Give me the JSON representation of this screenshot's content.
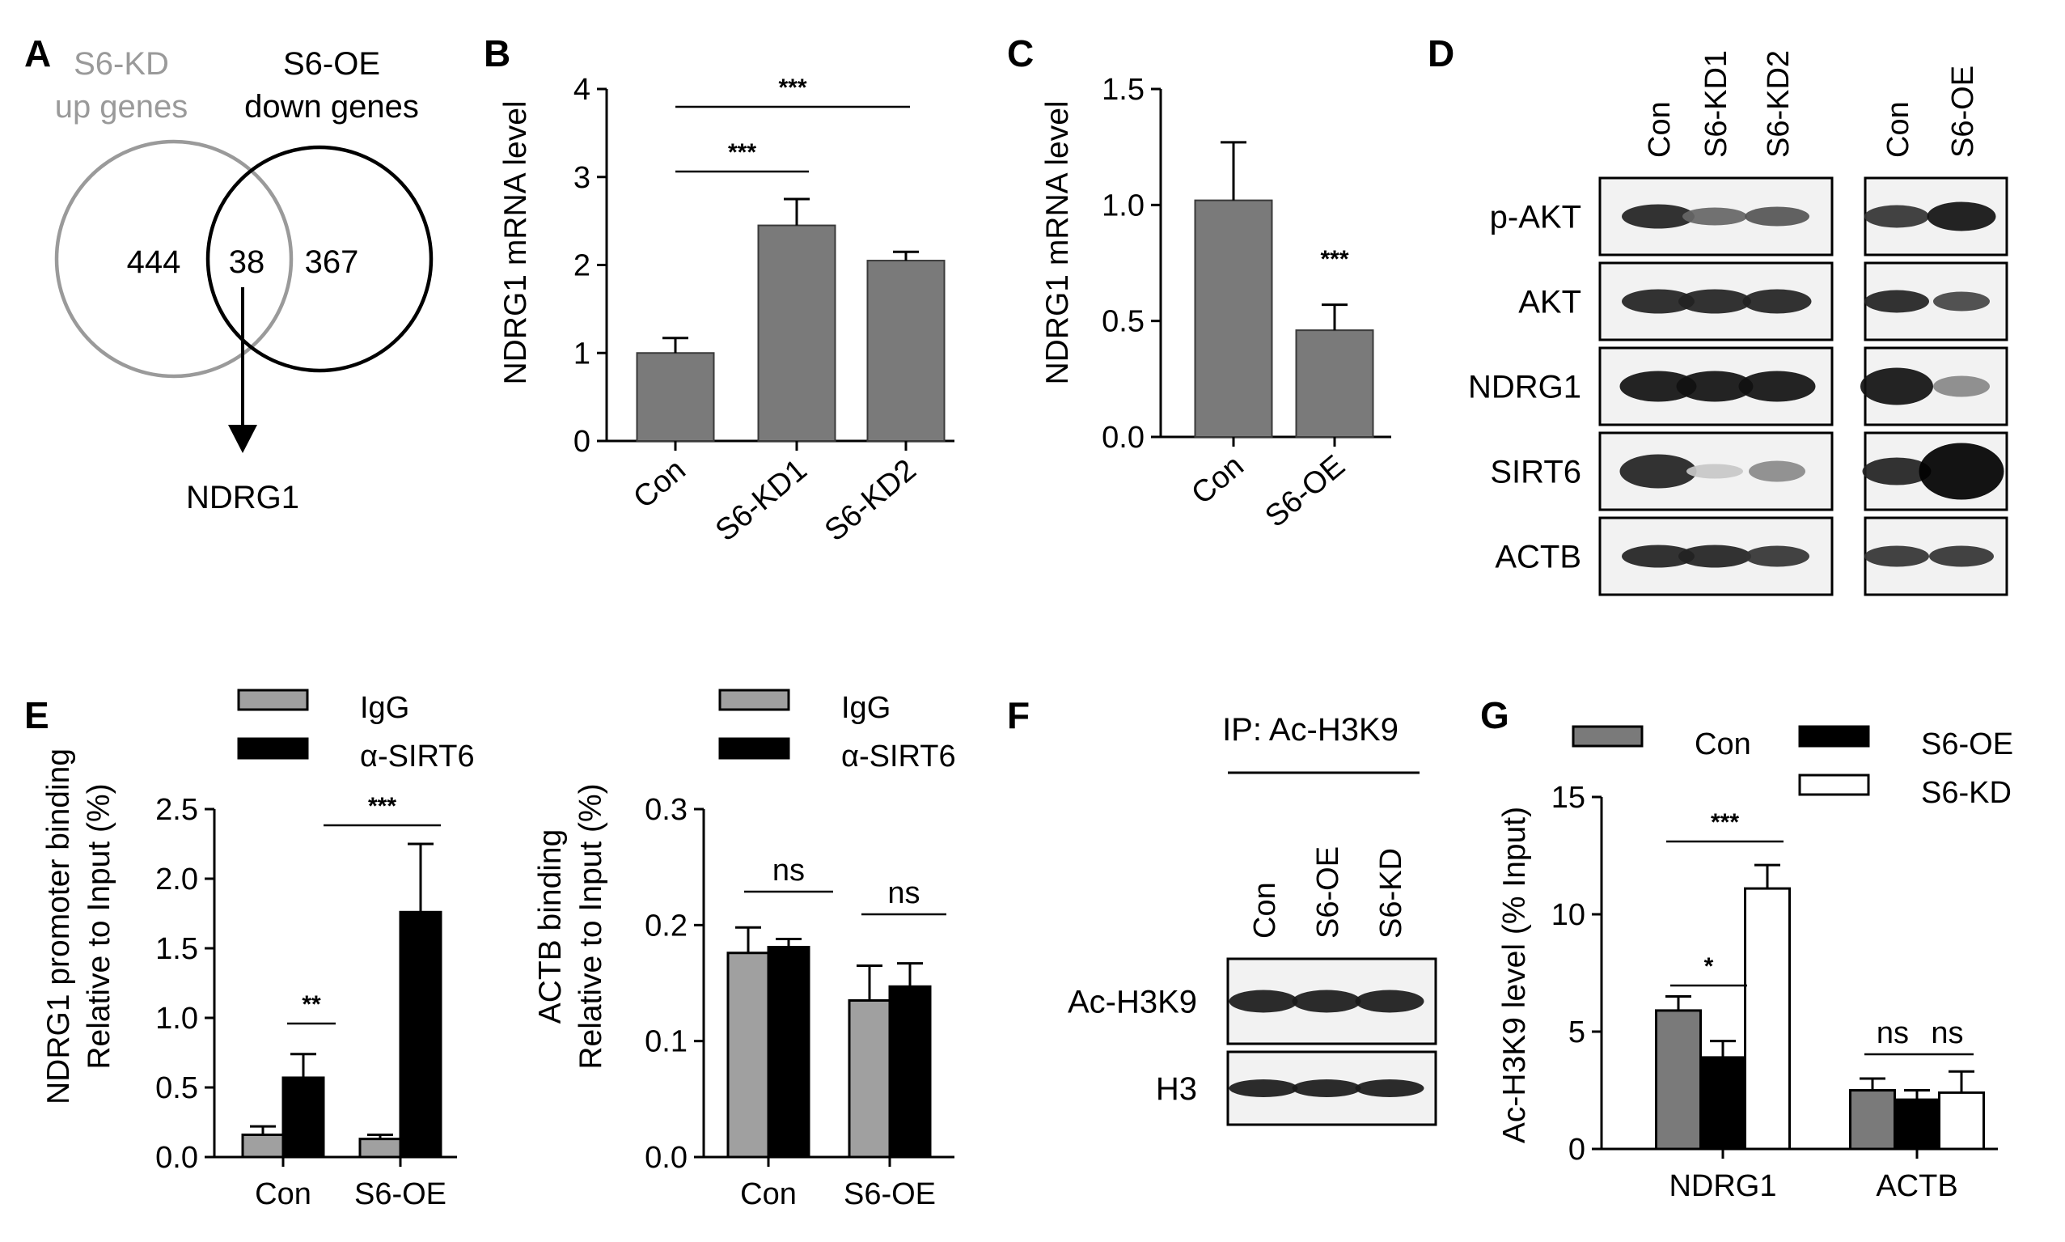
{
  "panels": {
    "A": {
      "label": "A",
      "left_title_lines": [
        "S6-KD",
        "up genes"
      ],
      "right_title_lines": [
        "S6-OE",
        "down genes"
      ],
      "left_count": "444",
      "overlap_count": "38",
      "right_count": "367",
      "result_gene": "NDRG1",
      "colors": {
        "left_circle": "#9a9a9a",
        "right_circle": "#000000",
        "left_title": "#9a9a9a"
      }
    },
    "D": {
      "label": "D",
      "lanes_left": [
        "Con",
        "S6-KD1",
        "S6-KD2"
      ],
      "lanes_right": [
        "Con",
        "S6-OE"
      ],
      "rows": [
        "p-AKT",
        "AKT",
        "NDRG1",
        "SIRT6",
        "ACTB"
      ]
    },
    "F": {
      "label": "F",
      "ip_label": "IP: Ac-H3K9",
      "lanes": [
        "Con",
        "S6-OE",
        "S6-KD"
      ],
      "rows": [
        "Ac-H3K9",
        "H3"
      ]
    }
  },
  "chart_data": [
    {
      "id": "B",
      "label": "B",
      "type": "bar",
      "categories": [
        "Con",
        "S6-KD1",
        "S6-KD2"
      ],
      "values": [
        1.0,
        2.45,
        2.05
      ],
      "errors": [
        0.17,
        0.3,
        0.1
      ],
      "ylabel": "NDRG1 mRNA level",
      "ylim": [
        0,
        4
      ],
      "yticks": [
        "0",
        "1",
        "2",
        "3",
        "4"
      ],
      "significance": [
        {
          "from": "Con",
          "to": "S6-KD1",
          "text": "***"
        },
        {
          "from": "Con",
          "to": "S6-KD2",
          "text": "***"
        }
      ],
      "color": "#7a7a7a"
    },
    {
      "id": "C",
      "label": "C",
      "type": "bar",
      "categories": [
        "Con",
        "S6-OE"
      ],
      "values": [
        1.02,
        0.46
      ],
      "errors": [
        0.25,
        0.11
      ],
      "ylabel": "NDRG1 mRNA level",
      "ylim": [
        0,
        1.5
      ],
      "yticks": [
        "0.0",
        "0.5",
        "1.0",
        "1.5"
      ],
      "significance": [
        {
          "over": "S6-OE",
          "text": "***"
        }
      ],
      "color": "#7a7a7a"
    },
    {
      "id": "E1",
      "label": "E",
      "type": "bar",
      "categories": [
        "Con",
        "S6-OE"
      ],
      "series": [
        {
          "name": "IgG",
          "values": [
            0.16,
            0.13
          ],
          "errors": [
            0.06,
            0.03
          ],
          "color": "#a0a0a0"
        },
        {
          "name": "α-SIRT6",
          "values": [
            0.57,
            1.76
          ],
          "errors": [
            0.17,
            0.49
          ],
          "color": "#000000"
        }
      ],
      "ylabel_lines": [
        "NDRG1 promoter binding",
        "Relative to Input (%)"
      ],
      "ylim": [
        0,
        2.5
      ],
      "yticks": [
        "0.0",
        "0.5",
        "1.0",
        "1.5",
        "2.0",
        "2.5"
      ],
      "significance": [
        {
          "text": "**",
          "group": "Con"
        },
        {
          "text": "***",
          "between": "Con α-SIRT6 - S6-OE α-SIRT6"
        }
      ]
    },
    {
      "id": "E2",
      "type": "bar",
      "categories": [
        "Con",
        "S6-OE"
      ],
      "series": [
        {
          "name": "IgG",
          "values": [
            0.176,
            0.135
          ],
          "errors": [
            0.022,
            0.03
          ],
          "color": "#a0a0a0"
        },
        {
          "name": "α-SIRT6",
          "values": [
            0.181,
            0.147
          ],
          "errors": [
            0.007,
            0.02
          ],
          "color": "#000000"
        }
      ],
      "ylabel_lines": [
        "ACTB  binding",
        "Relative to Input (%)"
      ],
      "ylim": [
        0,
        0.3
      ],
      "yticks": [
        "0.0",
        "0.1",
        "0.2",
        "0.3"
      ],
      "significance": [
        {
          "text": "ns",
          "group": "Con"
        },
        {
          "text": "ns",
          "group": "S6-OE"
        }
      ]
    },
    {
      "id": "G",
      "label": "G",
      "type": "bar",
      "categories": [
        "NDRG1",
        "ACTB"
      ],
      "series": [
        {
          "name": "Con",
          "values": [
            5.9,
            2.5
          ],
          "errors": [
            0.6,
            0.5
          ],
          "color": "#7a7a7a"
        },
        {
          "name": "S6-OE",
          "values": [
            3.9,
            2.1
          ],
          "errors": [
            0.7,
            0.4
          ],
          "color": "#000000"
        },
        {
          "name": "S6-KD",
          "values": [
            11.1,
            2.4
          ],
          "errors": [
            1.0,
            0.9
          ],
          "color": "#ffffff"
        }
      ],
      "ylabel": "Ac-H3K9 level (% Input)",
      "ylim": [
        0,
        15
      ],
      "yticks": [
        "0",
        "5",
        "10",
        "15"
      ],
      "significance": [
        {
          "text": "*",
          "group": "NDRG1",
          "pair": "Con-S6-OE"
        },
        {
          "text": "***",
          "group": "NDRG1",
          "pair": "Con-S6-KD"
        },
        {
          "text": "ns",
          "group": "ACTB",
          "pair": "Con-S6-OE"
        },
        {
          "text": "ns",
          "group": "ACTB",
          "pair": "S6-OE-S6-KD"
        }
      ]
    }
  ]
}
